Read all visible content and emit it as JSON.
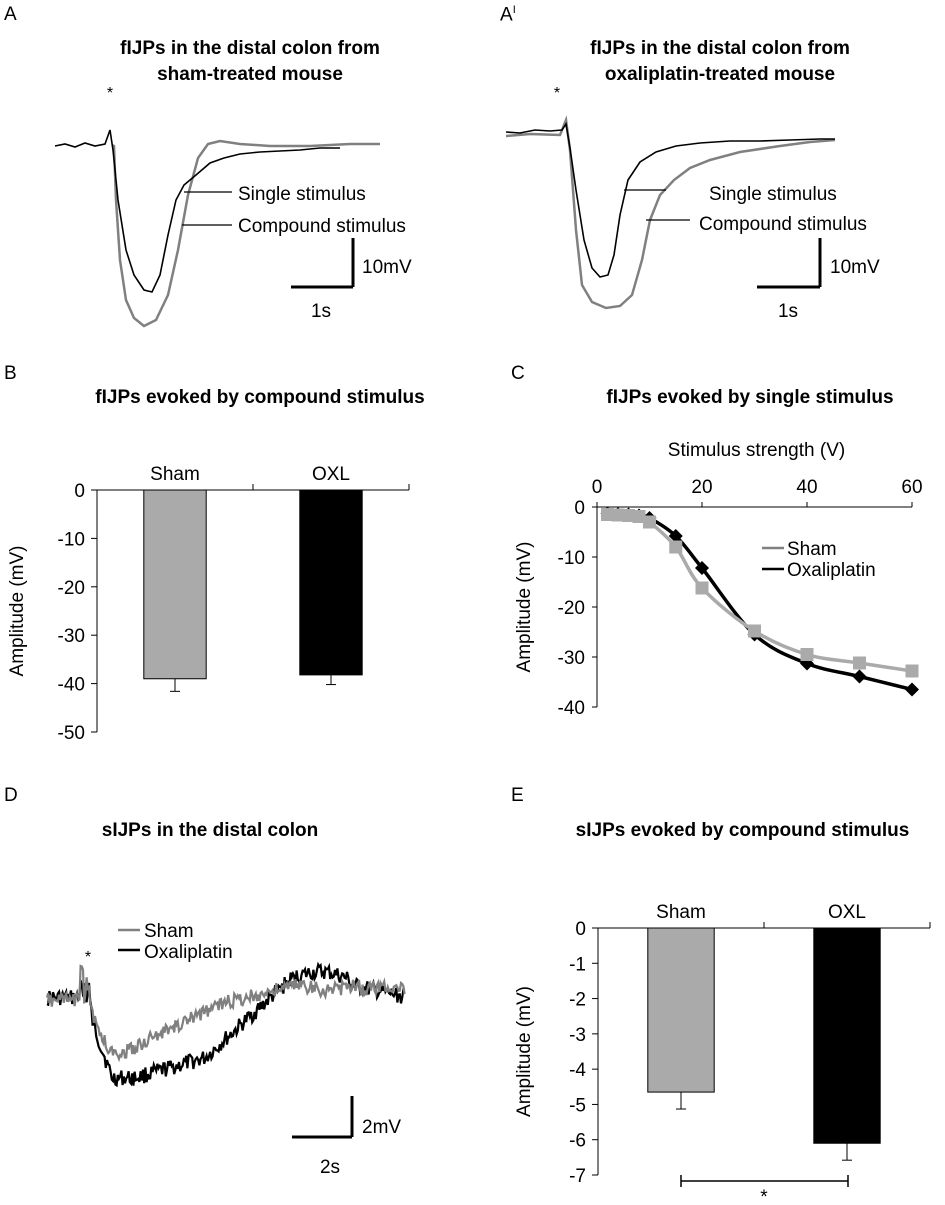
{
  "panels": {
    "A": {
      "letter": "A",
      "title_line1": "fIJPs in the  distal colon from",
      "title_line2": "sham-treated mouse",
      "star": "*",
      "label_single": "Single stimulus",
      "label_compound": "Compound stimulus",
      "scale_v": "10mV",
      "scale_t": "1s"
    },
    "A2": {
      "letter": "A",
      "letter_sup": "I",
      "title_line1": "fIJPs in the distal colon from",
      "title_line2": "oxaliplatin-treated mouse",
      "star": "*",
      "label_single": "Single stimulus",
      "label_compound": "Compound stimulus",
      "scale_v": "10mV",
      "scale_t": "1s"
    },
    "B": {
      "letter": "B",
      "title": "fIJPs evoked by compound stimulus"
    },
    "C": {
      "letter": "C",
      "title": "fIJPs evoked by single stimulus"
    },
    "D": {
      "letter": "D",
      "title": "sIJPs in the distal colon",
      "star": "*",
      "legend_sham": "Sham",
      "legend_oxl": "Oxaliplatin",
      "scale_v": "2mV",
      "scale_t": "2s"
    },
    "E": {
      "letter": "E",
      "title": "sIJPs evoked by compound stimulus",
      "sig": "*"
    }
  },
  "colors": {
    "sham": "#aaaaaa",
    "sham_trace": "#808080",
    "oxl": "#000000"
  },
  "chart_data": [
    {
      "id": "B",
      "type": "bar",
      "categories": [
        "Sham",
        "OXL"
      ],
      "values": [
        -39.0,
        -38.2
      ],
      "errors": [
        2.6,
        2.0
      ],
      "ylabel": "Amplitude (mV)",
      "ylim": [
        -50,
        0
      ],
      "yticks": [
        0,
        -10,
        -20,
        -30,
        -40,
        -50
      ],
      "colors": [
        "#aaaaaa",
        "#000000"
      ]
    },
    {
      "id": "C",
      "type": "line",
      "xlabel": "Stimulus strength (V)",
      "ylabel": "Amplitude (mV)",
      "xlim": [
        0,
        60
      ],
      "ylim": [
        -40,
        0
      ],
      "xticks": [
        0,
        20,
        40,
        60
      ],
      "yticks": [
        0,
        -10,
        -20,
        -30,
        -40
      ],
      "series": [
        {
          "name": "Sham",
          "marker": "square",
          "color": "#aaaaaa",
          "x": [
            2,
            4,
            6,
            8,
            10,
            15,
            20,
            30,
            40,
            50,
            60
          ],
          "y": [
            -1.5,
            -1.6,
            -1.7,
            -1.9,
            -3.0,
            -8.0,
            -16.2,
            -24.8,
            -29.5,
            -31.2,
            -32.8
          ]
        },
        {
          "name": "Oxaliplatin",
          "marker": "diamond",
          "color": "#000000",
          "x": [
            2,
            4,
            6,
            8,
            10,
            15,
            20,
            30,
            40,
            50,
            60
          ],
          "y": [
            -1.3,
            -1.4,
            -1.5,
            -1.7,
            -2.2,
            -5.8,
            -12.2,
            -25.5,
            -31.3,
            -33.9,
            -36.5
          ]
        }
      ]
    },
    {
      "id": "E",
      "type": "bar",
      "categories": [
        "Sham",
        "OXL"
      ],
      "values": [
        -4.65,
        -6.1
      ],
      "errors": [
        0.48,
        0.48
      ],
      "ylabel": "Amplitude (mV)",
      "ylim": [
        -7,
        0
      ],
      "yticks": [
        0,
        -1,
        -2,
        -3,
        -4,
        -5,
        -6,
        -7
      ],
      "colors": [
        "#aaaaaa",
        "#000000"
      ]
    }
  ]
}
